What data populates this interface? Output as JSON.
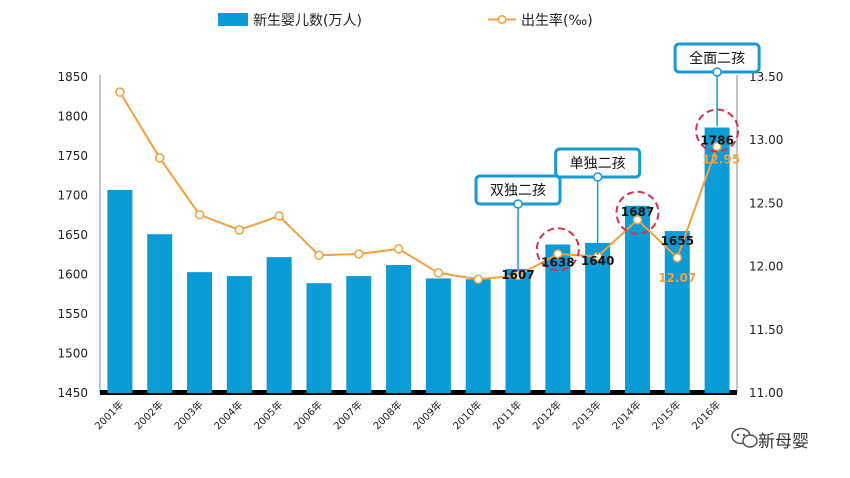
{
  "legend": {
    "bars_label": "新生婴儿数(万人)",
    "line_label": "出生率(‰)"
  },
  "watermark": "新母婴",
  "colors": {
    "bar": "#0b9bd7",
    "line": "#f0a040",
    "axis": "#000000",
    "callout_border": "#1b9ad2",
    "highlight": "#d6304a"
  },
  "chart_data": {
    "type": "bar",
    "categories": [
      "2001年",
      "2002年",
      "2003年",
      "2004年",
      "2005年",
      "2006年",
      "2007年",
      "2008年",
      "2009年",
      "2010年",
      "2011年",
      "2012年",
      "2013年",
      "2014年",
      "2015年",
      "2016年"
    ],
    "series": [
      {
        "name": "新生婴儿数(万人)",
        "type": "bar",
        "axis": "left",
        "values": [
          1707,
          1651,
          1603,
          1598,
          1622,
          1589,
          1598,
          1612,
          1595,
          1594,
          1607,
          1638,
          1640,
          1687,
          1655,
          1786
        ]
      },
      {
        "name": "出生率(‰)",
        "type": "line",
        "axis": "right",
        "values": [
          13.38,
          12.86,
          12.41,
          12.29,
          12.4,
          12.09,
          12.1,
          12.14,
          11.95,
          11.9,
          11.93,
          12.1,
          12.08,
          12.37,
          12.07,
          12.95
        ]
      }
    ],
    "y_left": {
      "min": 1450,
      "max": 1850,
      "ticks": [
        1450,
        1500,
        1550,
        1600,
        1650,
        1700,
        1750,
        1800,
        1850
      ]
    },
    "y_right": {
      "min": 11.0,
      "max": 13.5,
      "ticks": [
        "11.00",
        "11.50",
        "12.00",
        "12.50",
        "13.00",
        "13.50"
      ]
    },
    "bar_labels": [
      {
        "index": 10,
        "text": "1607"
      },
      {
        "index": 11,
        "text": "1638"
      },
      {
        "index": 12,
        "text": "1640"
      },
      {
        "index": 13,
        "text": "1687"
      },
      {
        "index": 14,
        "text": "1655"
      },
      {
        "index": 15,
        "text": "1786"
      }
    ],
    "rate_labels": [
      {
        "index": 14,
        "text": "12.07"
      },
      {
        "index": 15,
        "text": "12.95"
      }
    ],
    "callouts": [
      {
        "index": 10,
        "text": "双独二孩"
      },
      {
        "index": 12,
        "text": "单独二孩"
      },
      {
        "index": 15,
        "text": "全面二孩"
      }
    ],
    "highlights": [
      11,
      13,
      15
    ]
  }
}
